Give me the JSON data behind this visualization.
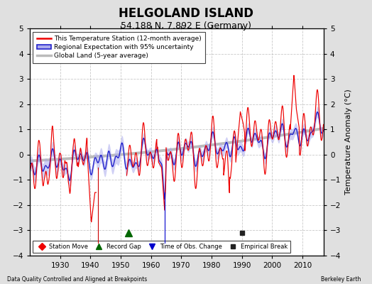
{
  "title": "HELGOLAND ISLAND",
  "subtitle": "54.188 N, 7.892 E (Germany)",
  "ylabel": "Temperature Anomaly (°C)",
  "xlabel_left": "Data Quality Controlled and Aligned at Breakpoints",
  "xlabel_right": "Berkeley Earth",
  "ylim": [
    -4,
    5
  ],
  "xlim": [
    1920,
    2017
  ],
  "xticks": [
    1930,
    1940,
    1950,
    1960,
    1970,
    1980,
    1990,
    2000,
    2010
  ],
  "yticks": [
    -4,
    -3,
    -2,
    -1,
    0,
    1,
    2,
    3,
    4,
    5
  ],
  "bg_color": "#e0e0e0",
  "plot_bg_color": "#ffffff",
  "grid_color": "#bbbbbb",
  "station_line_color": "#ee0000",
  "regional_line_color": "#2222cc",
  "regional_fill_color": "#aaaaee",
  "global_line_color": "#bbbbbb",
  "station_move_x": 1942.5,
  "record_gap_x": 1952.5,
  "obs_change_x": 1964.5,
  "empirical_break_x": 1990.0,
  "legend_entries": [
    "This Temperature Station (12-month average)",
    "Regional Expectation with 95% uncertainty",
    "Global Land (5-year average)"
  ],
  "bottom_legend_entries": [
    "Station Move",
    "Record Gap",
    "Time of Obs. Change",
    "Empirical Break"
  ]
}
